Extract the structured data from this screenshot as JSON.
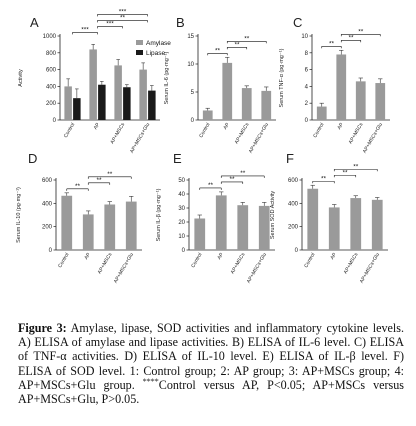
{
  "chart_data": [
    {
      "type": "bar",
      "letter": "A",
      "ylabel": "Activity",
      "ylim": [
        0,
        1000
      ],
      "yticks": [
        0,
        200,
        400,
        600,
        800,
        1000
      ],
      "categories": [
        "Control",
        "AP",
        "AP+MSCs",
        "AP+MSCs+Glu"
      ],
      "series": [
        {
          "name": "Amylase",
          "values": [
            400,
            840,
            650,
            600
          ],
          "errors": [
            90,
            60,
            70,
            80
          ]
        },
        {
          "name": "Lipase",
          "values": [
            260,
            420,
            390,
            350
          ],
          "errors": [
            110,
            40,
            30,
            60
          ]
        }
      ],
      "significance": [
        {
          "label": "***",
          "from": 0,
          "to": 1,
          "level": 1
        },
        {
          "label": "***",
          "from": 1,
          "to": 2,
          "level": 2
        },
        {
          "label": "**",
          "from": 1,
          "to": 3,
          "level": 3
        },
        {
          "label": "***",
          "from": 1,
          "to": 3,
          "level": 4
        }
      ],
      "legend": "top-right",
      "grid": false
    },
    {
      "type": "bar",
      "letter": "B",
      "ylabel": "Serum IL-6 (pg·mg⁻¹)",
      "ylim": [
        0,
        15
      ],
      "yticks": [
        0,
        5,
        10,
        15
      ],
      "categories": [
        "Control",
        "AP",
        "AP+MSCs",
        "AP+MSCs+Glu"
      ],
      "values": [
        1.7,
        10.2,
        5.7,
        5.2
      ],
      "errors": [
        0.4,
        1.0,
        0.4,
        0.7
      ],
      "significance": [
        {
          "label": "**",
          "from": 0,
          "to": 1,
          "level": 1
        },
        {
          "label": "**",
          "from": 1,
          "to": 2,
          "level": 2
        },
        {
          "label": "**",
          "from": 1,
          "to": 3,
          "level": 3
        }
      ],
      "grid": false
    },
    {
      "type": "bar",
      "letter": "C",
      "ylabel": "Serum TNF-α (pg·mg⁻¹)",
      "ylim": [
        0,
        10
      ],
      "yticks": [
        0,
        2,
        4,
        6,
        8,
        10
      ],
      "categories": [
        "Control",
        "AP",
        "AP+MSCs",
        "AP+MSCs+Glu"
      ],
      "values": [
        1.6,
        7.8,
        4.6,
        4.4
      ],
      "errors": [
        0.4,
        0.5,
        0.4,
        0.5
      ],
      "significance": [
        {
          "label": "**",
          "from": 0,
          "to": 1,
          "level": 1
        },
        {
          "label": "**",
          "from": 1,
          "to": 2,
          "level": 2
        },
        {
          "label": "**",
          "from": 1,
          "to": 3,
          "level": 3
        }
      ],
      "grid": false
    },
    {
      "type": "bar",
      "letter": "D",
      "ylabel": "Serum IL-10 (pg·mg⁻¹)",
      "ylim": [
        0,
        600
      ],
      "yticks": [
        0,
        200,
        400,
        600
      ],
      "categories": [
        "Control",
        "AP",
        "AP+MSCs",
        "AP+MSCs+Glu"
      ],
      "values": [
        465,
        305,
        390,
        415
      ],
      "errors": [
        25,
        30,
        25,
        45
      ],
      "significance": [
        {
          "label": "**",
          "from": 0,
          "to": 1,
          "level": 1
        },
        {
          "label": "**",
          "from": 1,
          "to": 2,
          "level": 2
        },
        {
          "label": "**",
          "from": 1,
          "to": 3,
          "level": 3
        }
      ],
      "grid": false
    },
    {
      "type": "bar",
      "letter": "E",
      "ylabel": "Serum IL-β (pg·mg⁻¹)",
      "ylim": [
        0,
        50
      ],
      "yticks": [
        0,
        10,
        20,
        30,
        40,
        50
      ],
      "categories": [
        "Control",
        "AP",
        "AP+MSCs",
        "AP+MSCs+Glu"
      ],
      "values": [
        22.5,
        39,
        32,
        31.5
      ],
      "errors": [
        2.5,
        2.5,
        2,
        2.5
      ],
      "significance": [
        {
          "label": "**",
          "from": 0,
          "to": 1,
          "level": 1
        },
        {
          "label": "**",
          "from": 1,
          "to": 2,
          "level": 2
        },
        {
          "label": "**",
          "from": 1,
          "to": 3,
          "level": 3
        }
      ],
      "grid": false
    },
    {
      "type": "bar",
      "letter": "F",
      "ylabel": "Serum SOD Activity",
      "ylim": [
        0,
        600
      ],
      "yticks": [
        0,
        200,
        400,
        600
      ],
      "categories": [
        "Control",
        "AP",
        "AP+MSCs",
        "AP+MSCs+Glu"
      ],
      "values": [
        525,
        365,
        445,
        430
      ],
      "errors": [
        30,
        25,
        20,
        20
      ],
      "significance": [
        {
          "label": "**",
          "from": 0,
          "to": 1,
          "level": 1
        },
        {
          "label": "**",
          "from": 1,
          "to": 2,
          "level": 2
        },
        {
          "label": "**",
          "from": 1,
          "to": 3,
          "level": 3
        }
      ],
      "grid": false
    }
  ],
  "colors": {
    "bar_gray": "#9a9a9a",
    "bar_black": "#1a1a1a",
    "axis": "#222222"
  },
  "caption": {
    "label": "Figure 3:",
    "text_before_sup": " Amylase, lipase, SOD activities and inflammatory cytokine levels. A) ELISA of amylase and lipase activities. B) ELISA of IL-6 level. C) ELISA of TNF-α activities. D) ELISA of IL-10 level. E) ELISA of IL-β level. F) ELISA of SOD level. 1: Control group; 2: AP group; 3: AP+MSCs group; 4: AP+MSCs+Glu group. ",
    "sup": "****",
    "text_after_sup": "Control versus AP, P<0.05; AP+MSCs versus AP+MSCs+Glu, P>0.05."
  }
}
